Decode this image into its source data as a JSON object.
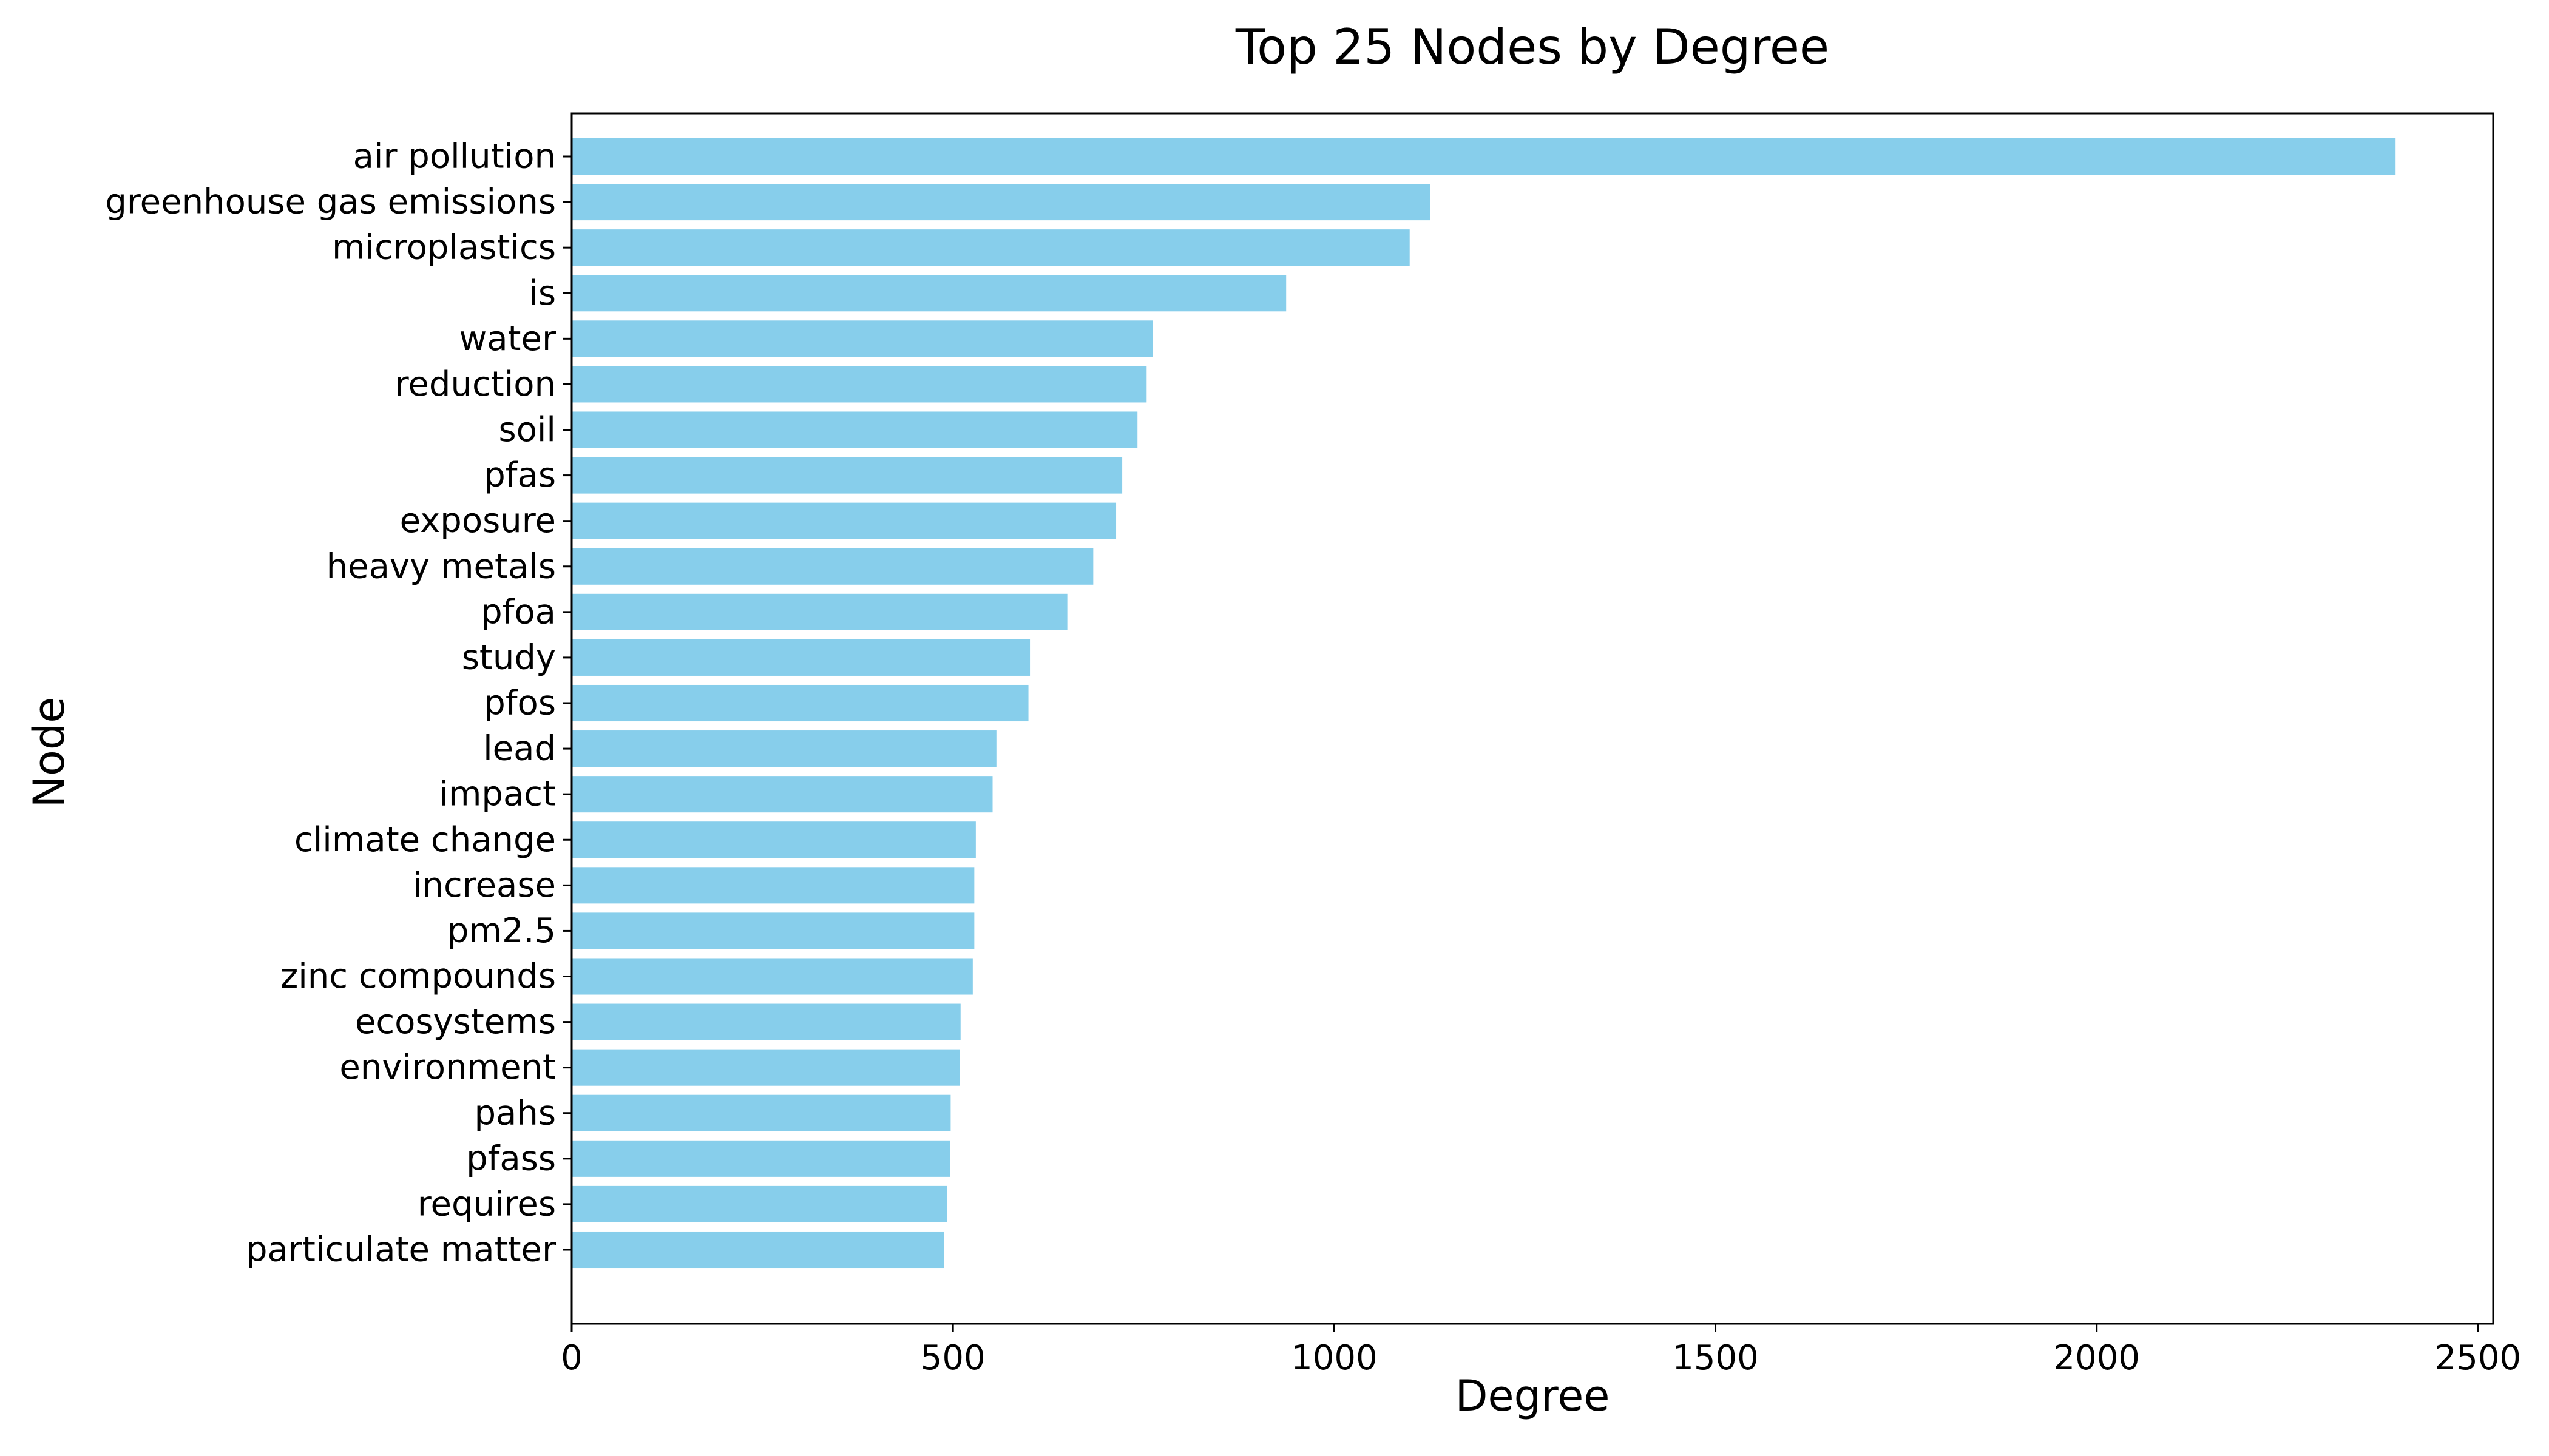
{
  "chart_data": {
    "type": "bar",
    "orientation": "horizontal",
    "title": "Top 25 Nodes by Degree",
    "xlabel": "Degree",
    "ylabel": "Node",
    "xlim": [
      0,
      2520
    ],
    "xticks": [
      0,
      500,
      1000,
      1500,
      2000,
      2500
    ],
    "bar_color": "#87ceeb",
    "categories": [
      "air pollution",
      "greenhouse gas emissions",
      "microplastics",
      "is",
      "water",
      "reduction",
      "soil",
      "pfas",
      "exposure",
      "heavy metals",
      "pfoa",
      "study",
      "pfos",
      "lead",
      "impact",
      "climate change",
      "increase",
      "pm2.5",
      "zinc compounds",
      "ecosystems",
      "environment",
      "pahs",
      "pfass",
      "requires",
      "particulate matter"
    ],
    "values": [
      2392,
      1126,
      1099,
      937,
      762,
      754,
      742,
      722,
      714,
      684,
      650,
      601,
      599,
      557,
      552,
      530,
      528,
      528,
      526,
      510,
      509,
      497,
      496,
      492,
      488
    ]
  }
}
